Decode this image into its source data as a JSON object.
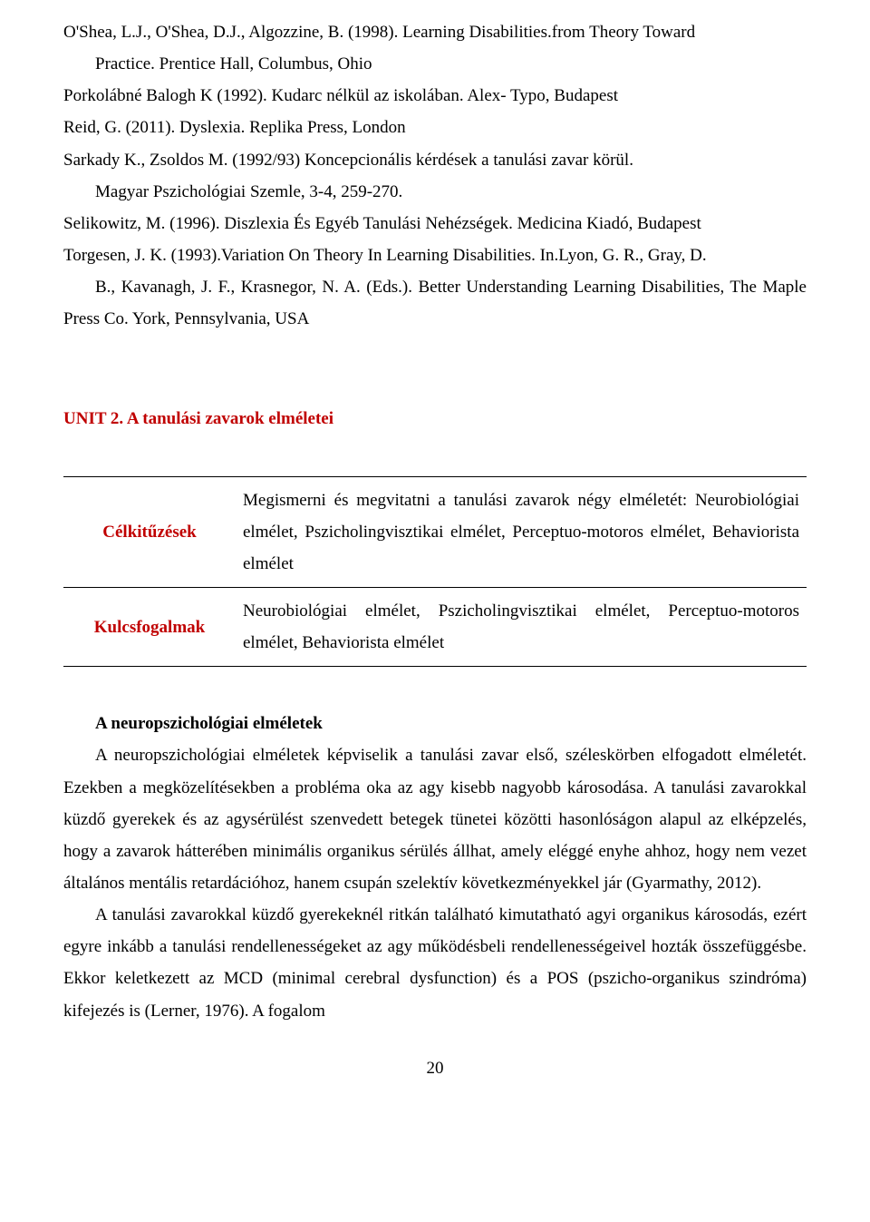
{
  "references": {
    "r1a": "O'Shea, L.J., O'Shea, D.J., Algozzine, B. (1998). Learning Disabilities.from Theory Toward",
    "r1b": "Practice. Prentice Hall, Columbus, Ohio",
    "r2": "Porkolábné Balogh K (1992). Kudarc nélkül az iskolában. Alex- Typo, Budapest",
    "r3": "Reid, G. (2011). Dyslexia. Replika Press, London",
    "r4a": "Sarkady K., Zsoldos M. (1992/93) Koncepcionális kérdések a tanulási zavar körül.",
    "r4b": "Magyar Pszichológiai Szemle, 3-4, 259-270.",
    "r5": "Selikowitz, M. (1996). Diszlexia És Egyéb Tanulási Nehézségek. Medicina Kiadó, Budapest",
    "r6a": "Torgesen, J. K. (1993).Variation On Theory In Learning Disabilities. In.Lyon, G. R., Gray, D.",
    "r6b": "B., Kavanagh, J. F., Krasnegor, N. A. (Eds.). Better Understanding Learning Disabilities, The Maple Press Co. York, Pennsylvania, USA"
  },
  "heading": "UNIT 2. A tanulási zavarok elméletei",
  "table": {
    "label1": "Célkitűzések",
    "content1": "Megismerni és megvitatni a tanulási zavarok négy elméletét: Neurobiológiai elmélet, Pszicholingvisztikai elmélet, Perceptuo-motoros elmélet, Behaviorista elmélet",
    "label2": "Kulcsfogalmak",
    "content2": "Neurobiológiai elmélet, Pszicholingvisztikai elmélet, Perceptuo-motoros elmélet, Behaviorista elmélet"
  },
  "body": {
    "subheading": "A neuropszichológiai elméletek",
    "p1": "A neuropszichológiai elméletek képviselik a tanulási zavar első, széleskörben elfogadott elméletét. Ezekben a megközelítésekben a probléma oka az agy kisebb nagyobb károsodása. A tanulási zavarokkal küzdő gyerekek és az agysérülést szenvedett betegek tünetei közötti hasonlóságon alapul az elképzelés, hogy a zavarok hátterében minimális organikus sérülés állhat, amely eléggé enyhe ahhoz, hogy nem vezet általános mentális retardációhoz, hanem csupán szelektív következményekkel jár (Gyarmathy, 2012).",
    "p2": "A tanulási zavarokkal küzdő gyerekeknél ritkán található kimutatható agyi organikus károsodás, ezért egyre inkább a tanulási rendellenességeket az agy működésbeli rendellenességeivel hozták összefüggésbe. Ekkor keletkezett az MCD (minimal cerebral dysfunction) és a POS (pszicho-organikus szindróma) kifejezés is (Lerner, 1976). A fogalom"
  },
  "pageNumber": "20",
  "colors": {
    "accent": "#c00000",
    "text": "#000000",
    "background": "#ffffff"
  }
}
